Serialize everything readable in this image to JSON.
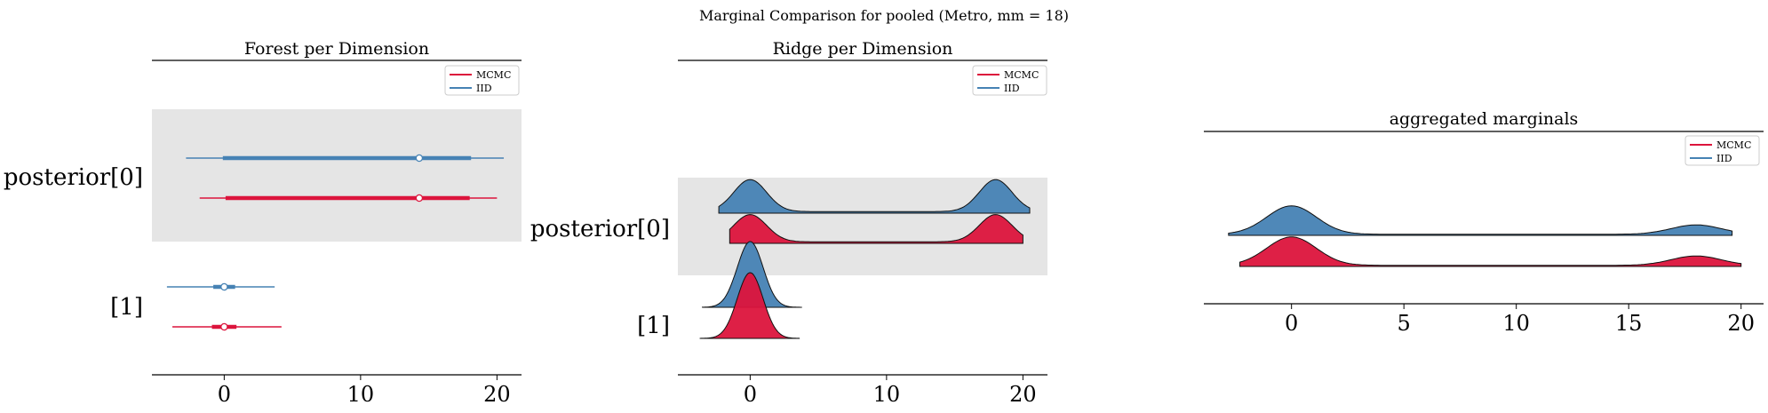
{
  "suptitle": "Marginal Comparison for pooled (Metro, mm = 18)",
  "colors": {
    "mcmc": "#dc143c",
    "iid": "#4682b4",
    "band": "#e5e5e5"
  },
  "chart_data": [
    {
      "type": "forest",
      "title": "Forest per Dimension",
      "xlim": [
        -5.3,
        21.8
      ],
      "xticks": [
        0,
        10,
        20
      ],
      "legend_placement": "top-right",
      "legend": [
        "MCMC",
        "IID"
      ],
      "rows": [
        {
          "label": "posterior[0]",
          "series": [
            {
              "name": "IID",
              "hdi_outer": [
                -2.8,
                20.5
              ],
              "hdi_inner": [
                -0.1,
                18.1
              ],
              "point": 14.3
            },
            {
              "name": "MCMC",
              "hdi_outer": [
                -1.8,
                20.0
              ],
              "hdi_inner": [
                0.1,
                18.0
              ],
              "point": 14.3
            }
          ]
        },
        {
          "label": "[1]",
          "series": [
            {
              "name": "IID",
              "hdi_outer": [
                -4.2,
                3.7
              ],
              "hdi_inner": [
                -0.8,
                0.8
              ],
              "point": 0.0
            },
            {
              "name": "MCMC",
              "hdi_outer": [
                -3.8,
                4.2
              ],
              "hdi_inner": [
                -0.9,
                0.9
              ],
              "point": 0.0
            }
          ]
        }
      ]
    },
    {
      "type": "ridge",
      "title": "Ridge per Dimension",
      "xlim": [
        -5.3,
        21.8
      ],
      "xticks": [
        0,
        10,
        20
      ],
      "legend_placement": "top-right",
      "legend": [
        "MCMC",
        "IID"
      ],
      "rows": [
        {
          "label": "posterior[0]",
          "series": [
            {
              "name": "IID",
              "range": [
                -2.3,
                20.5
              ],
              "peaks": [
                [
                  0,
                  1.2,
                  1.0
                ],
                [
                  18,
                  1.2,
                  1.0
                ]
              ],
              "floor": 0.05
            },
            {
              "name": "MCMC",
              "range": [
                -1.5,
                20.0
              ],
              "peaks": [
                [
                  0,
                  1.2,
                  0.85
                ],
                [
                  18,
                  1.2,
                  0.85
                ]
              ],
              "floor": 0.05
            }
          ]
        },
        {
          "label": "[1]",
          "series": [
            {
              "name": "IID",
              "range": [
                -3.5,
                3.8
              ],
              "peaks": [
                [
                  0,
                  0.95,
                  1.0
                ]
              ],
              "floor": 0.0
            },
            {
              "name": "MCMC",
              "range": [
                -3.7,
                3.6
              ],
              "peaks": [
                [
                  0,
                  0.95,
                  1.0
                ]
              ],
              "floor": 0.0
            }
          ]
        }
      ]
    },
    {
      "type": "ridge",
      "title": "aggregated marginals",
      "xlim": [
        -3.9,
        21.0
      ],
      "xticks": [
        0,
        5,
        10,
        15,
        20
      ],
      "legend_placement": "top-right",
      "legend": [
        "MCMC",
        "IID"
      ],
      "series": [
        {
          "name": "IID",
          "range": [
            -2.8,
            19.6
          ],
          "peaks": [
            [
              0,
              1.1,
              1.0
            ],
            [
              18,
              1.1,
              0.33
            ]
          ],
          "floor": 0.04
        },
        {
          "name": "MCMC",
          "range": [
            -2.3,
            20.0
          ],
          "peaks": [
            [
              0,
              1.1,
              1.0
            ],
            [
              18,
              1.1,
              0.33
            ]
          ],
          "floor": 0.04
        }
      ]
    }
  ]
}
